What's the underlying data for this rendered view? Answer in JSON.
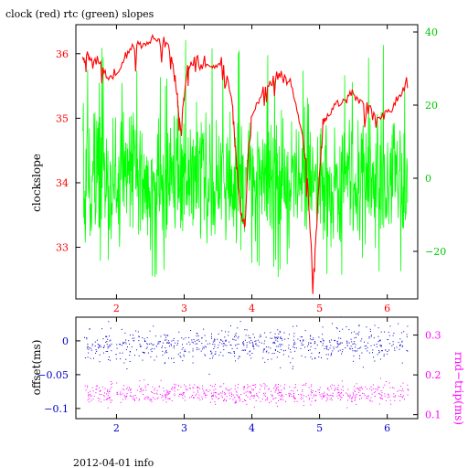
{
  "title": "clock (red) rtc (green) slopes",
  "footer": "2012-04-01 info",
  "colors": {
    "clock": "#ff0000",
    "rtc": "#00ff00",
    "offset": "#0000c8",
    "rndtrip": "#ff00ff",
    "axis_black": "#000000"
  },
  "chart_data": [
    {
      "type": "line",
      "title": "clock (red) rtc (green) slopes",
      "xlim": [
        1.4,
        6.45
      ],
      "x_ticks": [
        2,
        3,
        4,
        5,
        6
      ],
      "x_tick_labels": [
        "2",
        "3",
        "4",
        "5",
        "6"
      ],
      "ylabel": "clockslope",
      "ylim": [
        32.2,
        36.45
      ],
      "y_ticks": [
        33,
        34,
        35,
        36
      ],
      "y_tick_labels": [
        "33",
        "34",
        "35",
        "36"
      ],
      "y2lim": [
        -33,
        42
      ],
      "y2_ticks": [
        -20,
        0,
        20,
        40
      ],
      "y2_tick_labels": [
        "−20",
        "0",
        "20",
        "40"
      ],
      "grid": false,
      "series": [
        {
          "name": "clock",
          "axis": "left",
          "x": [
            1.5,
            1.53,
            1.57,
            1.6,
            1.7,
            1.8,
            1.9,
            2.0,
            2.1,
            2.2,
            2.3,
            2.4,
            2.5,
            2.6,
            2.7,
            2.8,
            2.85,
            2.9,
            2.93,
            2.96,
            3.0,
            3.05,
            3.1,
            3.2,
            3.3,
            3.4,
            3.5,
            3.6,
            3.7,
            3.75,
            3.8,
            3.85,
            3.9,
            3.95,
            4.0,
            4.1,
            4.2,
            4.3,
            4.4,
            4.5,
            4.6,
            4.7,
            4.8,
            4.85,
            4.9,
            4.95,
            5.0,
            5.05,
            5.1,
            5.2,
            5.3,
            5.4,
            5.5,
            5.6,
            5.7,
            5.8,
            5.9,
            6.0,
            6.1,
            6.2,
            6.3
          ],
          "values": [
            35.95,
            35.9,
            36.0,
            35.95,
            35.9,
            35.75,
            35.6,
            35.7,
            35.9,
            36.05,
            36.1,
            36.15,
            36.2,
            36.25,
            36.2,
            36.0,
            35.7,
            35.3,
            34.9,
            34.8,
            35.4,
            35.75,
            35.85,
            35.9,
            35.85,
            35.8,
            35.85,
            35.8,
            35.3,
            34.7,
            33.9,
            33.5,
            33.3,
            34.5,
            35.0,
            35.3,
            35.5,
            35.6,
            35.65,
            35.6,
            35.5,
            35.0,
            34.3,
            33.5,
            32.4,
            33.2,
            34.2,
            34.9,
            35.0,
            35.15,
            35.25,
            35.3,
            35.4,
            35.3,
            35.2,
            35.05,
            35.0,
            35.1,
            35.2,
            35.4,
            35.55
          ]
        },
        {
          "name": "rtc",
          "axis": "right",
          "x_range": [
            1.5,
            6.3
          ],
          "center": 0,
          "typical_range": [
            -17,
            17
          ],
          "extremes": [
            -27,
            38
          ]
        }
      ]
    },
    {
      "type": "scatter",
      "xlim": [
        1.4,
        6.45
      ],
      "x_ticks": [
        2,
        3,
        4,
        5,
        6
      ],
      "x_tick_labels": [
        "2",
        "3",
        "4",
        "5",
        "6"
      ],
      "ylabel": "offset(ms)",
      "ylim": [
        -0.115,
        0.035
      ],
      "y_ticks": [
        0,
        -0.05,
        -0.1
      ],
      "y_tick_labels": [
        "0",
        "−0.05",
        "−0.1"
      ],
      "y2label": "rnd−trip(ms)",
      "y2lim": [
        0.09,
        0.345
      ],
      "y2_ticks": [
        0.1,
        0.2,
        0.3
      ],
      "y2_tick_labels": [
        "0.1",
        "0.2",
        "0.3"
      ],
      "grid": false,
      "series": [
        {
          "name": "offset",
          "axis": "left",
          "x_range": [
            1.5,
            6.3
          ],
          "center": -0.005,
          "spread": 0.012
        },
        {
          "name": "rnd-trip",
          "axis": "right",
          "x_range": [
            1.5,
            6.3
          ],
          "center_lower": 0.145,
          "center_upper": 0.165,
          "spread": 0.012
        }
      ]
    }
  ]
}
